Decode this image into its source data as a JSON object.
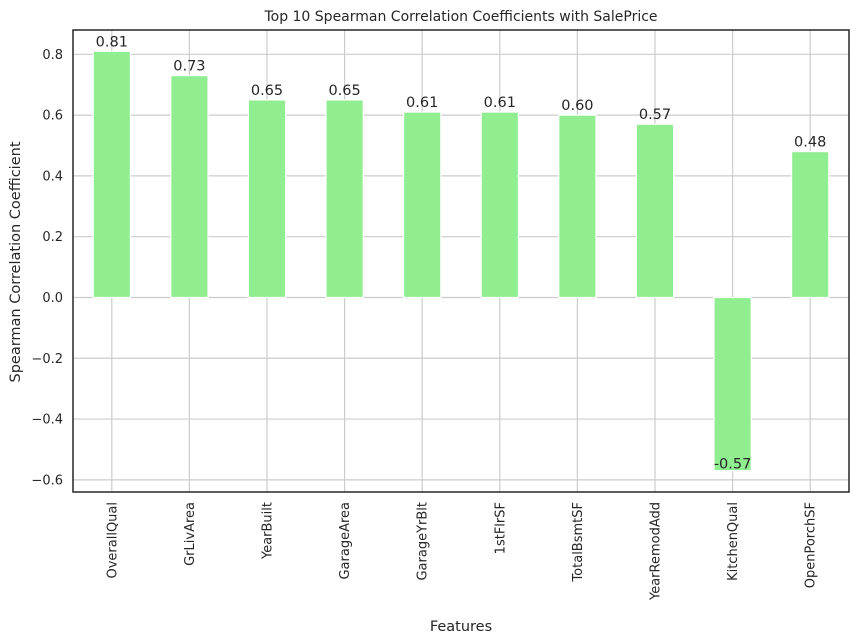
{
  "chart_data": {
    "type": "bar",
    "title": "Top 10 Spearman Correlation Coefficients with SalePrice",
    "xlabel": "Features",
    "ylabel": "Spearman Correlation Coefficient",
    "categories": [
      "OverallQual",
      "GrLivArea",
      "YearBuilt",
      "GarageArea",
      "GarageYrBlt",
      "1stFlrSF",
      "TotalBsmtSF",
      "YearRemodAdd",
      "KitchenQual",
      "OpenPorchSF"
    ],
    "values": [
      0.81,
      0.73,
      0.65,
      0.65,
      0.61,
      0.61,
      0.6,
      0.57,
      -0.57,
      0.48
    ],
    "value_labels": [
      "0.81",
      "0.73",
      "0.65",
      "0.65",
      "0.61",
      "0.61",
      "0.60",
      "0.57",
      "-0.57",
      "0.48"
    ],
    "ylim": [
      -0.64,
      0.88
    ],
    "yticks": [
      -0.6,
      -0.4,
      -0.2,
      0.0,
      0.2,
      0.4,
      0.6,
      0.8
    ],
    "ytick_labels": [
      "−0.6",
      "−0.4",
      "−0.2",
      "0.0",
      "0.2",
      "0.4",
      "0.6",
      "0.8"
    ],
    "grid": true,
    "bar_color": "#90ee90",
    "grid_color": "#cccccc",
    "spine_color": "#262626"
  }
}
